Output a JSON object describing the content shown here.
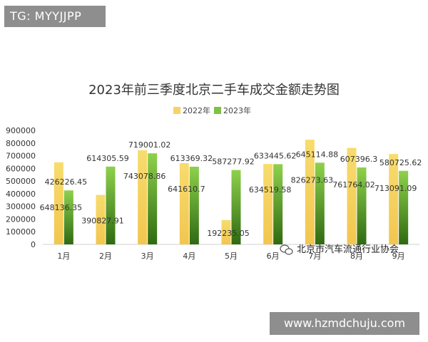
{
  "tag": "TG: MYYJJPP",
  "website": "www.hzmdchuju.com",
  "watermark": "北京市汽车流通行业协会",
  "colors": {
    "y2022": "#f5d365",
    "y2023_top": "#8ed14c",
    "y2023_bottom": "#2f6a12"
  },
  "chart_data": {
    "type": "bar",
    "title": "2023年前三季度北京二手车成交金额走势图",
    "categories": [
      "1月",
      "2月",
      "3月",
      "4月",
      "5月",
      "6月",
      "7月",
      "8月",
      "9月"
    ],
    "series": [
      {
        "name": "2022年",
        "values": [
          648136.35,
          390827.91,
          743078.86,
          641610.7,
          192235.05,
          634519.58,
          826273.63,
          761764.02,
          713091.09
        ],
        "labels": [
          "648136.35",
          "390827.91",
          "743078.86",
          "641610.7",
          "192235.05",
          "634519.58",
          "826273.63",
          "761764.02",
          "713091.09"
        ]
      },
      {
        "name": "2023年",
        "values": [
          426226.45,
          614305.59,
          719001.02,
          613369.32,
          587277.92,
          633445.62,
          645114.88,
          607396.3,
          580725.62
        ],
        "labels": [
          "426226.45",
          "614305.59",
          "719001.02",
          "613369.32",
          "587277.92",
          "633445.62",
          "645114.88",
          "607396.3",
          "580725.62"
        ]
      }
    ],
    "yticks": [
      "0",
      "100000",
      "200000",
      "300000",
      "400000",
      "500000",
      "600000",
      "700000",
      "800000",
      "900000"
    ],
    "ylim": [
      0,
      900000
    ],
    "legend": "top-center",
    "grid": false
  }
}
